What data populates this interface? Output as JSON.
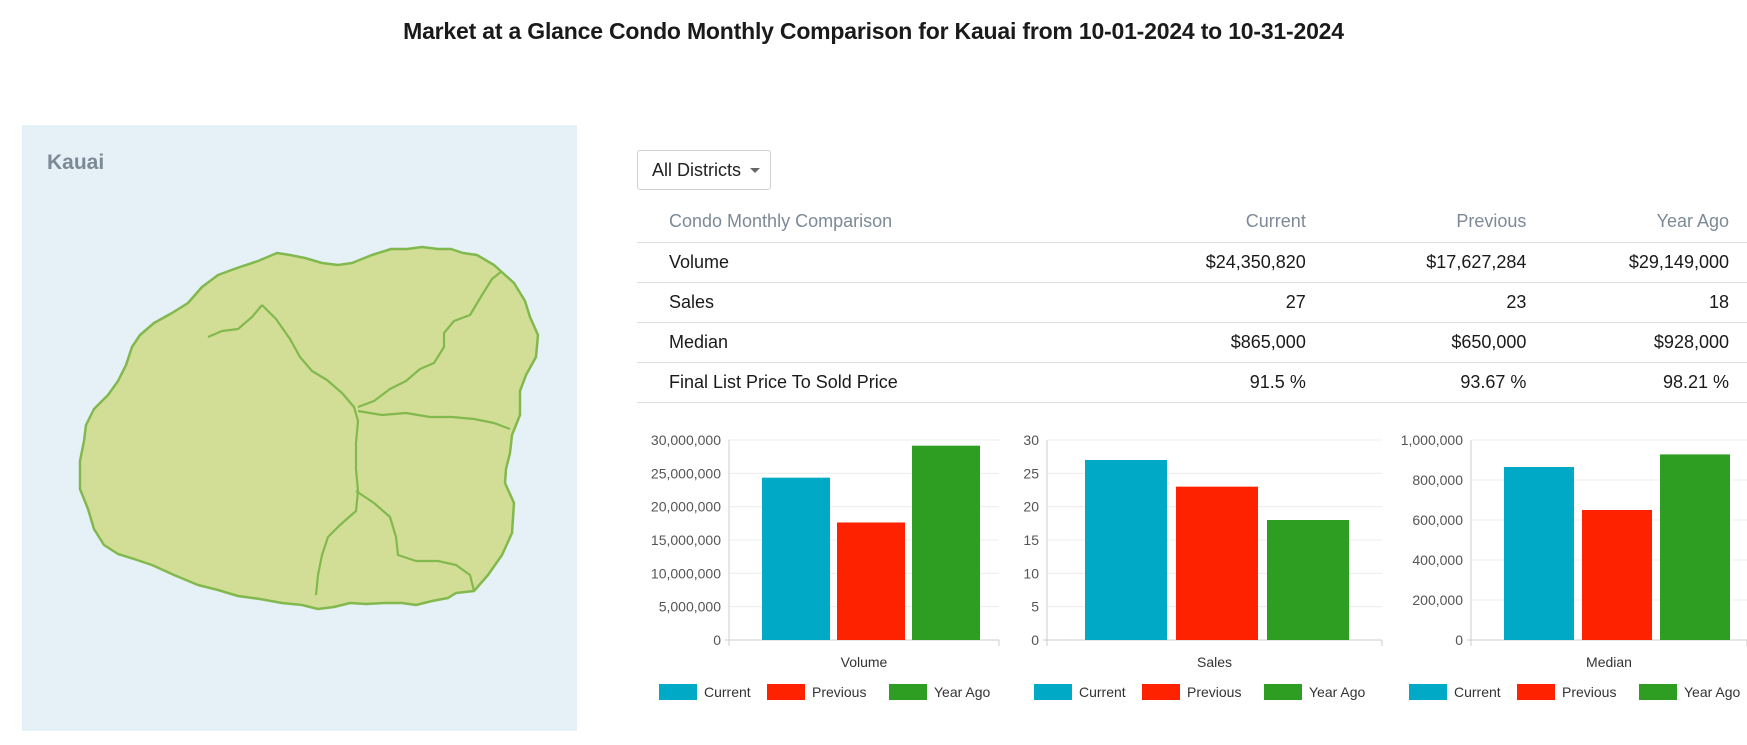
{
  "title": "Market at a Glance Condo Monthly Comparison for Kauai from 10-01-2024 to 10-31-2024",
  "map": {
    "label": "Kauai",
    "fill_color": "#d2de96",
    "stroke_color": "#82b94e",
    "panel_color": "#e6f0f7"
  },
  "district_select": {
    "value": "All Districts"
  },
  "table": {
    "headers": [
      "Condo Monthly Comparison",
      "Current",
      "Previous",
      "Year Ago"
    ],
    "rows": [
      [
        "Volume",
        "$24,350,820",
        "$17,627,284",
        "$29,149,000"
      ],
      [
        "Sales",
        "27",
        "23",
        "18"
      ],
      [
        "Median",
        "$865,000",
        "$650,000",
        "$928,000"
      ],
      [
        "Final List Price To Sold Price",
        "91.5 %",
        "93.67 %",
        "98.21 %"
      ]
    ]
  },
  "colors": {
    "current": "#00a9c6",
    "previous": "#ff2200",
    "year_ago": "#2e9e22"
  },
  "chart_data": [
    {
      "type": "bar",
      "categories": [
        "Volume"
      ],
      "series": [
        {
          "name": "Current",
          "values": [
            24350820
          ]
        },
        {
          "name": "Previous",
          "values": [
            17627284
          ]
        },
        {
          "name": "Year Ago",
          "values": [
            29149000
          ]
        }
      ],
      "ylim": [
        0,
        30000000
      ],
      "yticks": [
        "0",
        "5,000,000",
        "10,000,000",
        "15,000,000",
        "20,000,000",
        "25,000,000",
        "30,000,000"
      ],
      "legend_position": "bottom"
    },
    {
      "type": "bar",
      "categories": [
        "Sales"
      ],
      "series": [
        {
          "name": "Current",
          "values": [
            27
          ]
        },
        {
          "name": "Previous",
          "values": [
            23
          ]
        },
        {
          "name": "Year Ago",
          "values": [
            18
          ]
        }
      ],
      "ylim": [
        0,
        30
      ],
      "yticks": [
        "0",
        "5",
        "10",
        "15",
        "20",
        "25",
        "30"
      ],
      "legend_position": "bottom"
    },
    {
      "type": "bar",
      "categories": [
        "Median"
      ],
      "series": [
        {
          "name": "Current",
          "values": [
            865000
          ]
        },
        {
          "name": "Previous",
          "values": [
            650000
          ]
        },
        {
          "name": "Year Ago",
          "values": [
            928000
          ]
        }
      ],
      "ylim": [
        0,
        1000000
      ],
      "yticks": [
        "0",
        "200,000",
        "400,000",
        "600,000",
        "800,000",
        "1,000,000"
      ],
      "legend_position": "bottom"
    }
  ]
}
